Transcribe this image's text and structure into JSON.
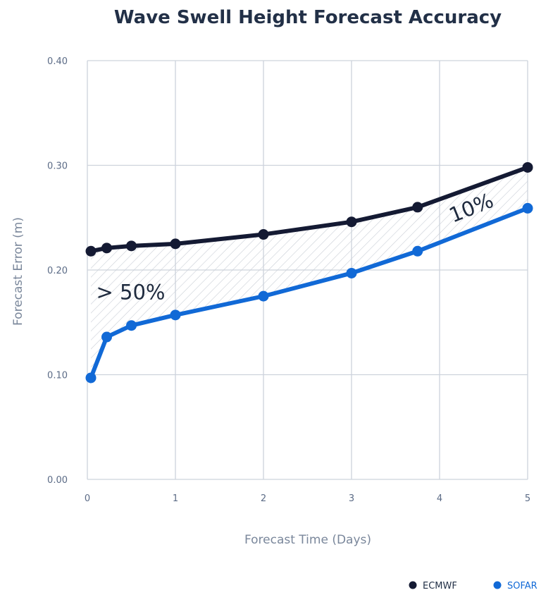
{
  "chart_data": {
    "type": "line",
    "title": "Wave Swell Height Forecast Accuracy",
    "xlabel": "Forecast Time (Days)",
    "ylabel": "Forecast Error (m)",
    "xlim": [
      0,
      5
    ],
    "ylim": [
      0,
      0.4
    ],
    "x_ticks": [
      "0",
      "1",
      "2",
      "3",
      "4",
      "5"
    ],
    "y_ticks": [
      "0.00",
      "0.10",
      "0.20",
      "0.30",
      "0.40"
    ],
    "grid": true,
    "legend_position": "bottom-right",
    "series": [
      {
        "name": "ECMWF",
        "color": "#141a33",
        "x": [
          0.04,
          0.22,
          0.5,
          1,
          2,
          3,
          3.75,
          5
        ],
        "y": [
          0.218,
          0.221,
          0.223,
          0.225,
          0.234,
          0.246,
          0.26,
          0.298
        ]
      },
      {
        "name": "SOFAR",
        "color": "#1169d6",
        "x": [
          0.04,
          0.22,
          0.5,
          1,
          2,
          3,
          3.75,
          5
        ],
        "y": [
          0.097,
          0.136,
          0.147,
          0.157,
          0.175,
          0.197,
          0.218,
          0.259
        ]
      }
    ],
    "annotations": [
      {
        "text": "> 50%",
        "x": 0.1,
        "y": 0.172
      },
      {
        "text": "10%",
        "x": 4.15,
        "y": 0.245,
        "rotation": -22
      }
    ]
  }
}
